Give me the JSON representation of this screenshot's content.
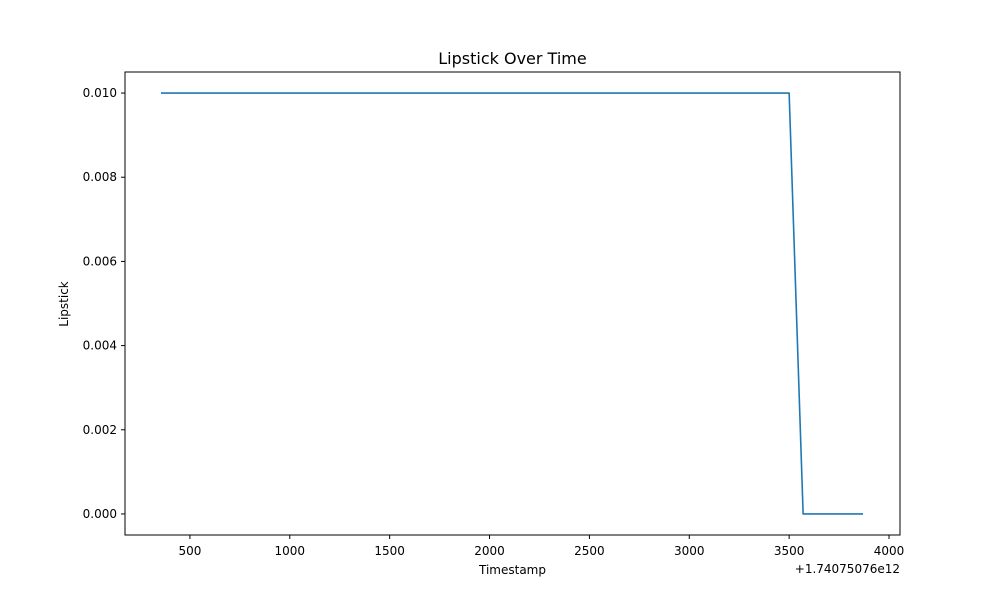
{
  "chart_data": {
    "type": "line",
    "title": "Lipstick Over Time",
    "xlabel": "Timestamp",
    "ylabel": "Lipstick",
    "x_offset_label": "+1.74075076e12",
    "xlim": [
      175,
      4055
    ],
    "ylim": [
      -0.0005,
      0.0105
    ],
    "xticks": [
      500,
      1000,
      1500,
      2000,
      2500,
      3000,
      3500,
      4000
    ],
    "xtick_labels": [
      "500",
      "1000",
      "1500",
      "2000",
      "2500",
      "3000",
      "3500",
      "4000"
    ],
    "yticks": [
      0.0,
      0.002,
      0.004,
      0.006,
      0.008,
      0.01
    ],
    "ytick_labels": [
      "0.000",
      "0.002",
      "0.004",
      "0.006",
      "0.008",
      "0.010"
    ],
    "grid": false,
    "series": [
      {
        "color": "#1f77b4",
        "x": [
          355,
          3500,
          3570,
          3870
        ],
        "y": [
          0.01,
          0.01,
          0.0,
          0.0
        ]
      }
    ]
  }
}
